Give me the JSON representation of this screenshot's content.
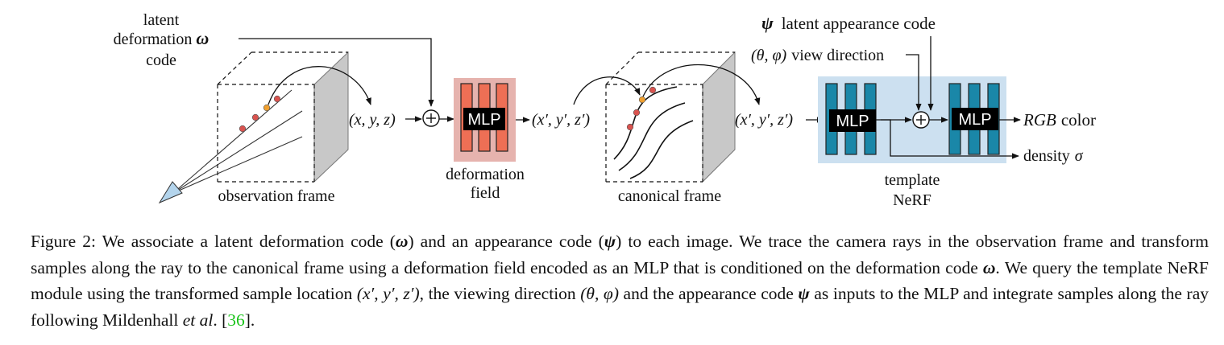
{
  "diagram": {
    "latent_label": {
      "line1": "latent",
      "line2": "deformation",
      "symbol": "ω",
      "line3": "code"
    },
    "observation_label": "observation frame",
    "xyz_label": "(x, y, z)",
    "mlp_label": "MLP",
    "deformation_label": {
      "line1": "deformation",
      "line2": "field"
    },
    "xyz_prime_label": "(x′, y′, z′)",
    "canonical_label": "canonical frame",
    "appearance_label": {
      "symbol": "ψ",
      "text": "latent appearance code"
    },
    "view_label": {
      "symbol": "(θ, φ)",
      "text": "view direction"
    },
    "xyz_prime_label2": "(x′, y′, z′)",
    "rgb_label": {
      "italic": "RGB",
      "text": "color"
    },
    "density_label": {
      "text": "density",
      "symbol": "σ"
    },
    "template_label": {
      "line1": "template",
      "line2": "NeRF"
    },
    "colors": {
      "deform_mlp_bg": "#e6b3ae",
      "deform_mlp_bar": "#ee6f55",
      "nerf_bg": "#cce0f0",
      "nerf_bar": "#1a87a8",
      "point_red": "#d9534f",
      "point_orange": "#f0a030",
      "face_gray": "#c8c8c8",
      "camera_fill": "#b3d4ec",
      "citation": "#19c319"
    }
  },
  "caption": {
    "s1": "Figure 2: We associate a latent deformation code (",
    "omega": "ω",
    "s2": ") and an appearance code (",
    "psi": "ψ",
    "s3": ") to each image. We trace the camera rays in the observation frame and transform samples along the ray to the canonical frame using a deformation field encoded as an MLP that is conditioned on the deformation code ",
    "omega2": "ω",
    "s4": ". We query the template NeRF module using the transformed sample location ",
    "xyzp": "(x′, y′, z′)",
    "s5": ", the viewing direction ",
    "thetaphi": "(θ, φ)",
    "s6": " and the appearance code ",
    "psi2": "ψ",
    "s7": " as inputs to the MLP and integrate samples along the ray following Mildenhall ",
    "etal": "et al",
    "s8": ". [",
    "cite": "36",
    "s9": "]."
  }
}
